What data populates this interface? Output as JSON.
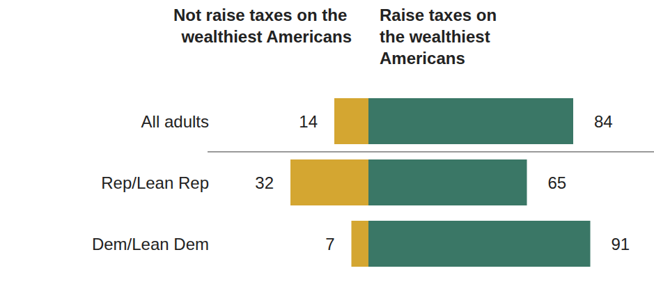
{
  "chart_data": {
    "type": "bar",
    "orientation": "horizontal",
    "categories": [
      "All adults",
      "Rep/Lean Rep",
      "Dem/Lean Dem"
    ],
    "series": [
      {
        "name": "Not raise taxes on the wealthiest Americans",
        "color": "#d4a631",
        "values": [
          14,
          32,
          7
        ]
      },
      {
        "name": "Raise taxes on the wealthiest Americans",
        "color": "#3a7766",
        "values": [
          84,
          65,
          91
        ]
      }
    ],
    "xlim": [
      0,
      100
    ],
    "data_labels": true,
    "tick_labels": "y"
  }
}
